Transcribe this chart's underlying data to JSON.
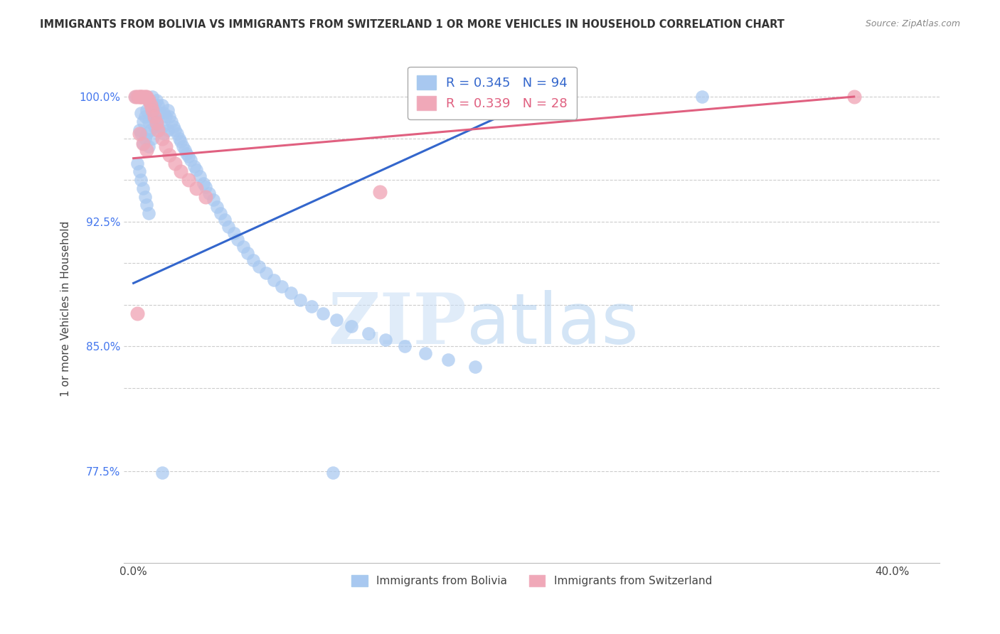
{
  "title": "IMMIGRANTS FROM BOLIVIA VS IMMIGRANTS FROM SWITZERLAND 1 OR MORE VEHICLES IN HOUSEHOLD CORRELATION CHART",
  "source": "Source: ZipAtlas.com",
  "ylabel": "1 or more Vehicles in Household",
  "bolivia_R": 0.345,
  "bolivia_N": 94,
  "switzerland_R": 0.339,
  "switzerland_N": 28,
  "bolivia_color": "#a8c8f0",
  "switzerland_color": "#f0a8b8",
  "trend_bolivia_color": "#3366cc",
  "trend_switzerland_color": "#e06080",
  "watermark_zip": "ZIP",
  "watermark_atlas": "atlas",
  "ylim_low": 0.72,
  "ylim_high": 1.025,
  "xlim_low": -0.005,
  "xlim_high": 0.425,
  "ytick_positions": [
    0.775,
    0.825,
    0.85,
    0.875,
    0.9,
    0.925,
    0.95,
    0.975,
    1.0
  ],
  "ytick_labels_map": {
    "0.775": "77.5%",
    "0.850": "85.0%",
    "0.925": "92.5%",
    "1.000": "100.0%"
  },
  "bolivia_x": [
    0.001,
    0.002,
    0.002,
    0.003,
    0.003,
    0.003,
    0.004,
    0.004,
    0.004,
    0.005,
    0.005,
    0.005,
    0.006,
    0.006,
    0.006,
    0.007,
    0.007,
    0.007,
    0.008,
    0.008,
    0.008,
    0.009,
    0.009,
    0.01,
    0.01,
    0.01,
    0.011,
    0.011,
    0.012,
    0.012,
    0.013,
    0.013,
    0.014,
    0.015,
    0.015,
    0.016,
    0.016,
    0.017,
    0.018,
    0.018,
    0.019,
    0.02,
    0.021,
    0.022,
    0.023,
    0.024,
    0.025,
    0.026,
    0.027,
    0.028,
    0.029,
    0.03,
    0.032,
    0.033,
    0.035,
    0.037,
    0.038,
    0.04,
    0.042,
    0.044,
    0.046,
    0.048,
    0.05,
    0.053,
    0.055,
    0.058,
    0.06,
    0.063,
    0.066,
    0.07,
    0.074,
    0.078,
    0.083,
    0.088,
    0.094,
    0.1,
    0.107,
    0.115,
    0.124,
    0.133,
    0.143,
    0.154,
    0.166,
    0.18,
    0.015,
    0.105,
    0.3,
    0.002,
    0.003,
    0.004,
    0.005,
    0.006,
    0.007,
    0.008
  ],
  "bolivia_y": [
    1.0,
    1.0,
    1.0,
    1.0,
    1.0,
    0.98,
    1.0,
    0.99,
    0.978,
    1.0,
    0.985,
    0.972,
    1.0,
    0.988,
    0.975,
    1.0,
    0.992,
    0.978,
    0.998,
    0.985,
    0.97,
    0.995,
    0.98,
    1.0,
    0.988,
    0.975,
    0.995,
    0.982,
    0.998,
    0.985,
    0.995,
    0.982,
    0.99,
    0.995,
    0.982,
    0.99,
    0.978,
    0.988,
    0.992,
    0.98,
    0.988,
    0.985,
    0.982,
    0.98,
    0.978,
    0.975,
    0.973,
    0.97,
    0.968,
    0.966,
    0.964,
    0.962,
    0.958,
    0.956,
    0.952,
    0.948,
    0.946,
    0.942,
    0.938,
    0.934,
    0.93,
    0.926,
    0.922,
    0.918,
    0.914,
    0.91,
    0.906,
    0.902,
    0.898,
    0.894,
    0.89,
    0.886,
    0.882,
    0.878,
    0.874,
    0.87,
    0.866,
    0.862,
    0.858,
    0.854,
    0.85,
    0.846,
    0.842,
    0.838,
    0.774,
    0.774,
    1.0,
    0.96,
    0.955,
    0.95,
    0.945,
    0.94,
    0.935,
    0.93
  ],
  "switzerland_x": [
    0.001,
    0.002,
    0.003,
    0.003,
    0.004,
    0.005,
    0.005,
    0.006,
    0.007,
    0.007,
    0.008,
    0.009,
    0.01,
    0.011,
    0.012,
    0.013,
    0.015,
    0.017,
    0.019,
    0.022,
    0.025,
    0.029,
    0.033,
    0.038,
    0.13,
    0.38,
    0.002,
    0.004
  ],
  "switzerland_y": [
    1.0,
    1.0,
    1.0,
    0.978,
    1.0,
    1.0,
    0.972,
    1.0,
    1.0,
    0.968,
    0.998,
    0.995,
    0.992,
    0.988,
    0.984,
    0.98,
    0.975,
    0.97,
    0.965,
    0.96,
    0.955,
    0.95,
    0.945,
    0.94,
    0.943,
    1.0,
    0.87,
    1.0
  ],
  "bolivia_trend_x0": 0.0,
  "bolivia_trend_y0": 0.888,
  "bolivia_trend_x1": 0.22,
  "bolivia_trend_y1": 1.002,
  "switzerland_trend_x0": 0.0,
  "switzerland_trend_y0": 0.963,
  "switzerland_trend_x1": 0.38,
  "switzerland_trend_y1": 1.0
}
